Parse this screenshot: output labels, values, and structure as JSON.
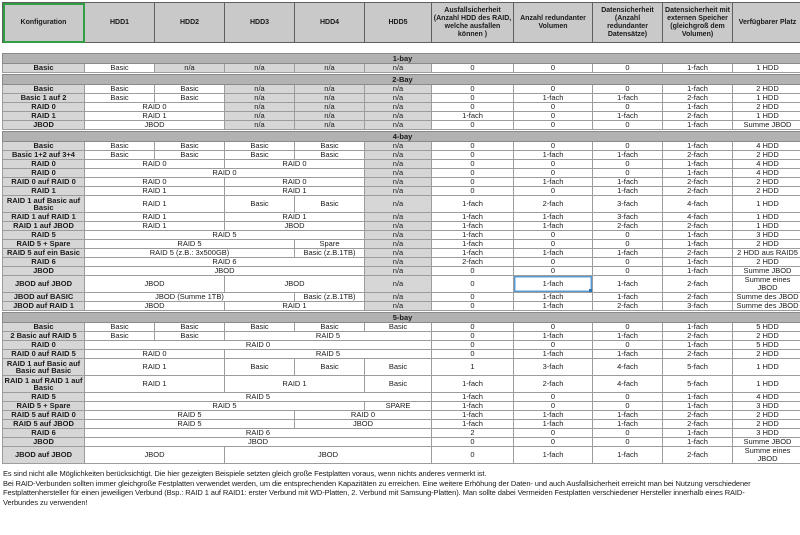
{
  "columns": [
    "Konfiguration",
    "HDD1",
    "HDD2",
    "HDD3",
    "HDD4",
    "HDD5",
    "Ausfallsicherheit (Anzahl HDD des RAID, welche ausfallen können )",
    "Anzahl redundanter Volumen",
    "Datensicherheit (Anzahl redundanter Datensätze)",
    "Datensicherheit mit externen Speicher (gleichgroß dem Volumen)",
    "Verfügbarer Platz"
  ],
  "selection": {
    "active_header_cell": "Konfiguration",
    "active_cell_section": "4-bay",
    "active_cell_row": "JBOD auf JBOD",
    "active_cell_column": "Anzahl redundanter Volumen",
    "active_cell_value": "1-fach"
  },
  "colors": {
    "header_bg": "#c9c9c9",
    "band_bg": "#b2b2b2",
    "gray_cell_bg": "#d6d6d6",
    "grid_line": "#9c9c9c",
    "selection_green": "#2f9e44",
    "selection_blue": "#5b9bd5"
  },
  "sections": [
    {
      "band": "1-bay",
      "rows": [
        {
          "config": "Basic",
          "cells": [
            [
              "Basic",
              1
            ],
            [
              "n/a",
              1,
              "na"
            ],
            [
              "n/a",
              1,
              "na"
            ],
            [
              "n/a",
              1,
              "na"
            ],
            [
              "n/a",
              1,
              "na"
            ]
          ],
          "stats": [
            "0",
            "0",
            "0",
            "1-fach",
            "1 HDD"
          ]
        }
      ]
    },
    {
      "band": "2-Bay",
      "rows": [
        {
          "config": "Basic",
          "cells": [
            [
              "Basic",
              1
            ],
            [
              "Basic",
              1
            ],
            [
              "n/a",
              1,
              "na"
            ],
            [
              "n/a",
              1,
              "na"
            ],
            [
              "n/a",
              1,
              "na"
            ]
          ],
          "stats": [
            "0",
            "0",
            "0",
            "1-fach",
            "2 HDD"
          ]
        },
        {
          "config": "Basic 1 auf 2",
          "cells": [
            [
              "Basic",
              1
            ],
            [
              "Basic",
              1
            ],
            [
              "n/a",
              1,
              "na"
            ],
            [
              "n/a",
              1,
              "na"
            ],
            [
              "n/a",
              1,
              "na"
            ]
          ],
          "stats": [
            "0",
            "1-fach",
            "1-fach",
            "2-fach",
            "1 HDD"
          ]
        },
        {
          "config": "RAID 0",
          "cells": [
            [
              "RAID 0",
              2
            ],
            [
              "n/a",
              1,
              "na"
            ],
            [
              "n/a",
              1,
              "na"
            ],
            [
              "n/a",
              1,
              "na"
            ]
          ],
          "stats": [
            "0",
            "0",
            "0",
            "1-fach",
            "2 HDD"
          ]
        },
        {
          "config": "RAID 1",
          "cells": [
            [
              "RAID 1",
              2
            ],
            [
              "n/a",
              1,
              "na"
            ],
            [
              "n/a",
              1,
              "na"
            ],
            [
              "n/a",
              1,
              "na"
            ]
          ],
          "stats": [
            "1-fach",
            "0",
            "1-fach",
            "2-fach",
            "1 HDD"
          ]
        },
        {
          "config": "JBOD",
          "cells": [
            [
              "JBOD",
              2
            ],
            [
              "n/a",
              1,
              "na"
            ],
            [
              "n/a",
              1,
              "na"
            ],
            [
              "n/a",
              1,
              "na"
            ]
          ],
          "stats": [
            "0",
            "0",
            "0",
            "1-fach",
            "Summe JBOD"
          ]
        }
      ]
    },
    {
      "band": "4-bay",
      "rows": [
        {
          "config": "Basic",
          "cells": [
            [
              "Basic",
              1
            ],
            [
              "Basic",
              1
            ],
            [
              "Basic",
              1
            ],
            [
              "Basic",
              1
            ],
            [
              "n/a",
              1,
              "na"
            ]
          ],
          "stats": [
            "0",
            "0",
            "0",
            "1-fach",
            "4 HDD"
          ]
        },
        {
          "config": "Basic 1+2 auf 3+4",
          "cells": [
            [
              "Basic",
              1
            ],
            [
              "Basic",
              1
            ],
            [
              "Basic",
              1
            ],
            [
              "Basic",
              1
            ],
            [
              "n/a",
              1,
              "na"
            ]
          ],
          "stats": [
            "0",
            "1-fach",
            "1-fach",
            "2-fach",
            "2 HDD"
          ]
        },
        {
          "config": "RAID 0",
          "cells": [
            [
              "RAID 0",
              2
            ],
            [
              "RAID 0",
              2
            ],
            [
              "n/a",
              1,
              "na"
            ]
          ],
          "stats": [
            "0",
            "0",
            "0",
            "1-fach",
            "4 HDD"
          ]
        },
        {
          "config": "RAID 0",
          "cells": [
            [
              "RAID 0",
              4
            ],
            [
              "n/a",
              1,
              "na"
            ]
          ],
          "stats": [
            "0",
            "0",
            "0",
            "1-fach",
            "4 HDD"
          ]
        },
        {
          "config": "RAID 0 auf RAID 0",
          "cells": [
            [
              "RAID 0",
              2
            ],
            [
              "RAID 0",
              2
            ],
            [
              "n/a",
              1,
              "na"
            ]
          ],
          "stats": [
            "0",
            "1-fach",
            "1-fach",
            "2-fach",
            "2 HDD"
          ]
        },
        {
          "config": "RAID 1",
          "cells": [
            [
              "RAID 1",
              2
            ],
            [
              "RAID 1",
              2
            ],
            [
              "n/a",
              1,
              "na"
            ]
          ],
          "stats": [
            "0",
            "0",
            "1-fach",
            "2-fach",
            "2 HDD"
          ]
        },
        {
          "config": "RAID 1 auf Basic auf Basic",
          "tall": true,
          "cells": [
            [
              "RAID 1",
              2
            ],
            [
              "Basic",
              1
            ],
            [
              "Basic",
              1
            ],
            [
              "n/a",
              1,
              "na"
            ]
          ],
          "stats": [
            "1-fach",
            "2-fach",
            "3-fach",
            "4-fach",
            "1 HDD"
          ]
        },
        {
          "config": "RAID 1 auf RAID 1",
          "cells": [
            [
              "RAID 1",
              2
            ],
            [
              "RAID 1",
              2
            ],
            [
              "n/a",
              1,
              "na"
            ]
          ],
          "stats": [
            "1-fach",
            "1-fach",
            "3-fach",
            "4-fach",
            "1 HDD"
          ]
        },
        {
          "config": "RAID 1 auf JBOD",
          "cells": [
            [
              "RAID 1",
              2
            ],
            [
              "JBOD",
              2
            ],
            [
              "n/a",
              1,
              "na"
            ]
          ],
          "stats": [
            "1-fach",
            "1-fach",
            "2-fach",
            "2-fach",
            "1 HDD"
          ]
        },
        {
          "config": "RAID 5",
          "cells": [
            [
              "RAID 5",
              4
            ],
            [
              "n/a",
              1,
              "na"
            ]
          ],
          "stats": [
            "1-fach",
            "0",
            "0",
            "1-fach",
            "3 HDD"
          ]
        },
        {
          "config": "RAID 5 + Spare",
          "cells": [
            [
              "RAID 5",
              3
            ],
            [
              "Spare",
              1
            ],
            [
              "n/a",
              1,
              "na"
            ]
          ],
          "stats": [
            "1-fach",
            "0",
            "0",
            "1-fach",
            "2 HDD"
          ]
        },
        {
          "config": "RAID 5 auf ein Basic",
          "cells": [
            [
              "RAID 5 (z.B.: 3x500GB)",
              3
            ],
            [
              "Basic (z.B.1TB)",
              1
            ],
            [
              "n/a",
              1,
              "na"
            ]
          ],
          "stats": [
            "1-fach",
            "1-fach",
            "1-fach",
            "2-fach",
            "2 HDD aus RAID5"
          ]
        },
        {
          "config": "RAID 6",
          "cells": [
            [
              "RAID 6",
              4
            ],
            [
              "n/a",
              1,
              "na"
            ]
          ],
          "stats": [
            "2-fach",
            "0",
            "0",
            "1-fach",
            "2 HDD"
          ]
        },
        {
          "config": "JBOD",
          "cells": [
            [
              "JBOD",
              4
            ],
            [
              "n/a",
              1,
              "na"
            ]
          ],
          "stats": [
            "0",
            "0",
            "0",
            "1-fach",
            "Summe JBOD"
          ]
        },
        {
          "config": "JBOD auf JBOD",
          "tall": true,
          "selected_stat": 1,
          "cells": [
            [
              "JBOD",
              2
            ],
            [
              "JBOD",
              2
            ],
            [
              "n/a",
              1,
              "na"
            ]
          ],
          "stats": [
            "0",
            "1-fach",
            "1-fach",
            "2-fach",
            "Summe eines JBOD"
          ]
        },
        {
          "config": "JBOD auf BASIC",
          "cells": [
            [
              "JBOD (Summe 1TB)",
              3
            ],
            [
              "Basic (z.B.1TB)",
              1
            ],
            [
              "n/a",
              1,
              "na"
            ]
          ],
          "stats": [
            "0",
            "1-fach",
            "1-fach",
            "2-fach",
            "Summe des JBOD"
          ]
        },
        {
          "config": "JBOD auf RAID 1",
          "cells": [
            [
              "JBOD",
              2
            ],
            [
              "RAID 1",
              2
            ],
            [
              "n/a",
              1,
              "na"
            ]
          ],
          "stats": [
            "0",
            "1-fach",
            "2-fach",
            "3-fach",
            "Summe des JBOD"
          ]
        }
      ]
    },
    {
      "band": "5-bay",
      "rows": [
        {
          "config": "Basic",
          "cells": [
            [
              "Basic",
              1
            ],
            [
              "Basic",
              1
            ],
            [
              "Basic",
              1
            ],
            [
              "Basic",
              1
            ],
            [
              "Basic",
              1
            ]
          ],
          "stats": [
            "0",
            "0",
            "0",
            "1-fach",
            "5 HDD"
          ]
        },
        {
          "config": "2 Basic auf RAID 5",
          "cells": [
            [
              "Basic",
              1
            ],
            [
              "Basic",
              1
            ],
            [
              "RAID 5",
              3
            ]
          ],
          "stats": [
            "0",
            "1-fach",
            "1-fach",
            "2-fach",
            "2 HDD"
          ]
        },
        {
          "config": "RAID 0",
          "cells": [
            [
              "RAID 0",
              5
            ]
          ],
          "stats": [
            "0",
            "0",
            "0",
            "1-fach",
            "5 HDD"
          ]
        },
        {
          "config": "RAID 0 auf RAID 5",
          "cells": [
            [
              "RAID 0",
              2
            ],
            [
              "RAID 5",
              3
            ]
          ],
          "stats": [
            "0",
            "1-fach",
            "1-fach",
            "2-fach",
            "2 HDD"
          ]
        },
        {
          "config": "RAID 1 auf Basic auf Basic auf Basic",
          "tall": true,
          "cells": [
            [
              "RAID 1",
              2
            ],
            [
              "Basic",
              1
            ],
            [
              "Basic",
              1
            ],
            [
              "Basic",
              1
            ]
          ],
          "stats": [
            "1",
            "3-fach",
            "4-fach",
            "5-fach",
            "1 HDD"
          ]
        },
        {
          "config": "RAID 1 auf RAID 1 auf Basic",
          "tall": true,
          "cells": [
            [
              "RAID 1",
              2
            ],
            [
              "RAID 1",
              2
            ],
            [
              "Basic",
              1
            ]
          ],
          "stats": [
            "1-fach",
            "2-fach",
            "4-fach",
            "5-fach",
            "1 HDD"
          ]
        },
        {
          "config": "RAID 5",
          "cells": [
            [
              "RAID 5",
              5
            ]
          ],
          "stats": [
            "1-fach",
            "0",
            "0",
            "1-fach",
            "4 HDD"
          ]
        },
        {
          "config": "RAID 5 + Spare",
          "cells": [
            [
              "RAID 5",
              4
            ],
            [
              "SPARE",
              1
            ]
          ],
          "stats": [
            "1-fach",
            "0",
            "0",
            "1-fach",
            "3 HDD"
          ]
        },
        {
          "config": "RAID 5 auf RAID 0",
          "cells": [
            [
              "RAID 5",
              3
            ],
            [
              "RAID 0",
              2
            ]
          ],
          "stats": [
            "1-fach",
            "1-fach",
            "1-fach",
            "2-fach",
            "2 HDD"
          ]
        },
        {
          "config": "RAID 5 auf JBOD",
          "cells": [
            [
              "RAID 5",
              3
            ],
            [
              "JBOD",
              2
            ]
          ],
          "stats": [
            "1-fach",
            "1-fach",
            "1-fach",
            "2-fach",
            "2 HDD"
          ]
        },
        {
          "config": "RAID 6",
          "cells": [
            [
              "RAID 6",
              5
            ]
          ],
          "stats": [
            "2",
            "0",
            "0",
            "1-fach",
            "3 HDD"
          ]
        },
        {
          "config": "JBOD",
          "cells": [
            [
              "JBOD",
              5
            ]
          ],
          "stats": [
            "0",
            "0",
            "0",
            "1-fach",
            "Summe JBOD"
          ]
        },
        {
          "config": "JBOD auf JBOD",
          "tall": true,
          "cells": [
            [
              "JBOD",
              2
            ],
            [
              "JBOD",
              3
            ]
          ],
          "stats": [
            "0",
            "1-fach",
            "1-fach",
            "2-fach",
            "Summe eines JBOD"
          ]
        }
      ]
    }
  ],
  "footer": {
    "lines": [
      "Es sind nicht alle Möglichkeiten berücksichtigt. Die hier gezeigten Beispiele setzten gleich große Festplatten voraus, wenn nichts anderes vermerkt ist.",
      "Bei RAID-Verbunden sollten immer gleichgroße Festplatten verwendet werden, um die entsprechenden Kapazitäten zu erreichen. Eine weitere Erhöhung der Daten- und auch Ausfallsicherheit erreicht man bei Nutzung verschiedener",
      "Festplattenhersteller für einen jeweiligen Verbund (Bsp.: RAID 1 auf RAID1: erster Verbund mit WD-Platten, 2. Verbund mit Samsung-Platten). Man sollte dabei Vermeiden Festplatten verschiedener Hersteller innerhalb eines RAID-",
      "Verbundes zu verwenden!"
    ]
  }
}
